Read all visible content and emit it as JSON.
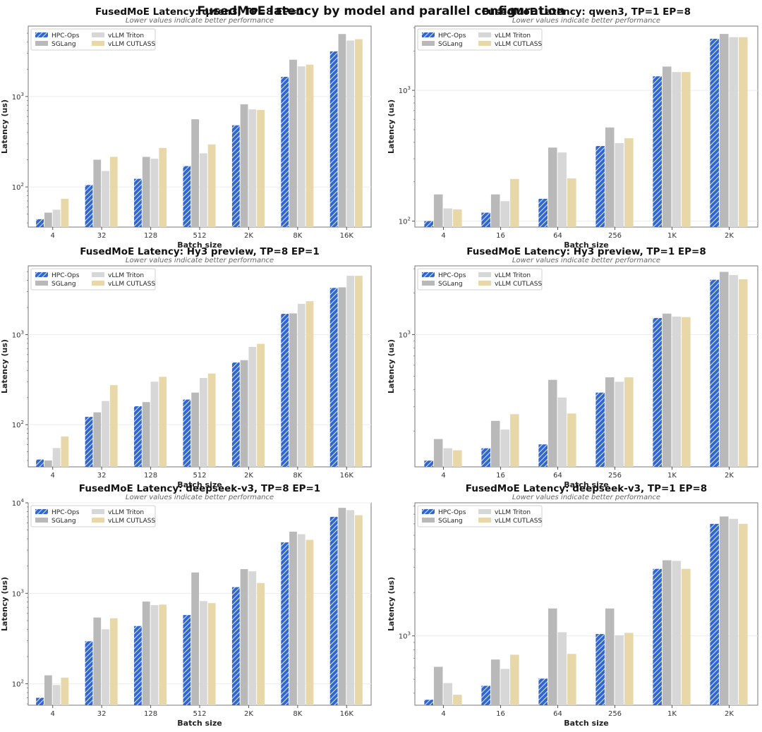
{
  "figure": {
    "title": "FusedMoE latency by model and parallel configuration"
  },
  "colors": {
    "HPC-Ops": "#2f66d0",
    "SGLang": "#b9b9b9",
    "vLLM Triton": "#d7d7d7",
    "vLLM CUTLASS": "#e8d7a8"
  },
  "chart_data": [
    {
      "type": "bar",
      "title": "FusedMoE Latency: qwen3, TP=8 EP=1",
      "subtitle": "Lower values indicate better performance",
      "xlabel": "Batch size",
      "ylabel": "Latency (us)",
      "yscale": "log",
      "ylim": [
        36,
        6000
      ],
      "yticks": [
        {
          "value": 100,
          "base": "10",
          "exp": "2"
        },
        {
          "value": 1000,
          "base": "10",
          "exp": "3"
        }
      ],
      "categories": [
        "4",
        "32",
        "128",
        "512",
        "2K",
        "8K",
        "16K"
      ],
      "legend": "upper-left",
      "series": [
        {
          "name": "HPC-Ops",
          "values": [
            44,
            105,
            123,
            170,
            480,
            1650,
            3150
          ]
        },
        {
          "name": "SGLang",
          "values": [
            52,
            200,
            215,
            560,
            820,
            2550,
            4900
          ]
        },
        {
          "name": "vLLM Triton",
          "values": [
            56,
            150,
            205,
            235,
            720,
            2150,
            4150
          ]
        },
        {
          "name": "vLLM CUTLASS",
          "values": [
            74,
            215,
            270,
            295,
            710,
            2250,
            4300
          ]
        }
      ]
    },
    {
      "type": "bar",
      "title": "FusedMoE Latency: qwen3, TP=1 EP=8",
      "subtitle": "Lower values indicate better performance",
      "xlabel": "Batch size",
      "ylabel": "Latency (us)",
      "yscale": "log",
      "ylim": [
        90,
        3100
      ],
      "yticks": [
        {
          "value": 100,
          "base": "10",
          "exp": "2"
        },
        {
          "value": 1000,
          "base": "10",
          "exp": "3"
        }
      ],
      "categories": [
        "4",
        "16",
        "64",
        "256",
        "1K",
        "2K"
      ],
      "legend": "upper-left",
      "series": [
        {
          "name": "HPC-Ops",
          "values": [
            100,
            116,
            148,
            375,
            1280,
            2480
          ]
        },
        {
          "name": "SGLang",
          "values": [
            160,
            160,
            365,
            520,
            1520,
            2700
          ]
        },
        {
          "name": "vLLM Triton",
          "values": [
            125,
            142,
            335,
            395,
            1380,
            2550
          ]
        },
        {
          "name": "vLLM CUTLASS",
          "values": [
            123,
            210,
            212,
            430,
            1380,
            2550
          ]
        }
      ]
    },
    {
      "type": "bar",
      "title": "FusedMoE Latency: Hy3 preview, TP=8 EP=1",
      "subtitle": "Lower values indicate better performance",
      "xlabel": "Batch size",
      "ylabel": "Latency (us)",
      "yscale": "log",
      "ylim": [
        34,
        5800
      ],
      "yticks": [
        {
          "value": 100,
          "base": "10",
          "exp": "2"
        },
        {
          "value": 1000,
          "base": "10",
          "exp": "3"
        }
      ],
      "categories": [
        "4",
        "32",
        "128",
        "512",
        "2K",
        "8K",
        "16K"
      ],
      "legend": "upper-left",
      "series": [
        {
          "name": "HPC-Ops",
          "values": [
            41,
            122,
            160,
            190,
            490,
            1700,
            3300
          ]
        },
        {
          "name": "SGLang",
          "values": [
            40,
            137,
            178,
            227,
            520,
            1720,
            3350
          ]
        },
        {
          "name": "vLLM Triton",
          "values": [
            55,
            183,
            300,
            330,
            730,
            2200,
            4500
          ]
        },
        {
          "name": "vLLM CUTLASS",
          "values": [
            74,
            275,
            340,
            370,
            790,
            2350,
            4500
          ]
        }
      ]
    },
    {
      "type": "bar",
      "title": "FusedMoE Latency: Hy3 preview, TP=1 EP=8",
      "subtitle": "Lower values indicate better performance",
      "xlabel": "Batch size",
      "ylabel": "Latency (us)",
      "yscale": "log",
      "ylim": [
        110,
        3150
      ],
      "yticks": [
        {
          "value": 1000,
          "base": "10",
          "exp": "3"
        }
      ],
      "categories": [
        "4",
        "16",
        "64",
        "256",
        "1K",
        "2K"
      ],
      "legend": "upper-left",
      "series": [
        {
          "name": "HPC-Ops",
          "values": [
            122,
            150,
            160,
            380,
            1320,
            2500
          ]
        },
        {
          "name": "SGLang",
          "values": [
            175,
            237,
            470,
            490,
            1420,
            2850
          ]
        },
        {
          "name": "vLLM Triton",
          "values": [
            150,
            205,
            350,
            455,
            1350,
            2700
          ]
        },
        {
          "name": "vLLM CUTLASS",
          "values": [
            145,
            265,
            268,
            490,
            1340,
            2520
          ]
        }
      ]
    },
    {
      "type": "bar",
      "title": "FusedMoE Latency: deepseek-v3, TP=8 EP=1",
      "subtitle": "Lower values indicate better performance",
      "xlabel": "Batch size",
      "ylabel": "Latency (us)",
      "yscale": "log",
      "ylim": [
        58,
        10000
      ],
      "yticks": [
        {
          "value": 100,
          "base": "10",
          "exp": "2"
        },
        {
          "value": 1000,
          "base": "10",
          "exp": "3"
        },
        {
          "value": 10000,
          "base": "10",
          "exp": "4"
        }
      ],
      "categories": [
        "4",
        "32",
        "128",
        "512",
        "2K",
        "8K",
        "16K"
      ],
      "legend": "upper-left",
      "series": [
        {
          "name": "HPC-Ops",
          "values": [
            70,
            295,
            435,
            575,
            1170,
            3650,
            7000
          ]
        },
        {
          "name": "SGLang",
          "values": [
            124,
            540,
            810,
            1700,
            1850,
            4800,
            8800
          ]
        },
        {
          "name": "vLLM Triton",
          "values": [
            97,
            400,
            740,
            820,
            1750,
            4500,
            8300
          ]
        },
        {
          "name": "vLLM CUTLASS",
          "values": [
            117,
            530,
            750,
            780,
            1300,
            3900,
            7300
          ]
        }
      ]
    },
    {
      "type": "bar",
      "title": "FusedMoE Latency: deepseek-v3, TP=1 EP=8",
      "subtitle": "Lower values indicate better performance",
      "xlabel": "Batch size",
      "ylabel": "Latency (us)",
      "yscale": "log",
      "ylim": [
        330,
        8400
      ],
      "yticks": [
        {
          "value": 1000,
          "base": "10",
          "exp": "3"
        }
      ],
      "categories": [
        "4",
        "16",
        "64",
        "256",
        "1K",
        "2K"
      ],
      "legend": "upper-left",
      "series": [
        {
          "name": "HPC-Ops",
          "values": [
            360,
            450,
            505,
            1030,
            2920,
            6000
          ]
        },
        {
          "name": "SGLang",
          "values": [
            610,
            685,
            1550,
            1550,
            3350,
            6750
          ]
        },
        {
          "name": "vLLM Triton",
          "values": [
            470,
            590,
            1060,
            1010,
            3320,
            6500
          ]
        },
        {
          "name": "vLLM CUTLASS",
          "values": [
            390,
            740,
            750,
            1050,
            2920,
            6000
          ]
        }
      ]
    }
  ]
}
